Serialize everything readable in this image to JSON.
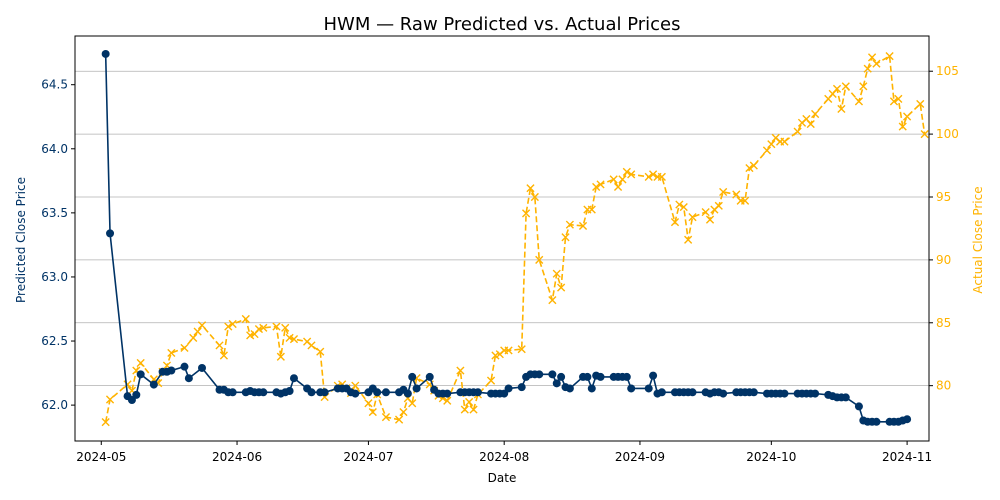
{
  "chart_data": {
    "type": "line",
    "title": "HWM — Raw Predicted vs. Actual Prices",
    "xlabel": "Date",
    "ylabel_left": "Predicted Close Price",
    "ylabel_right": "Actual Close Price",
    "x_ticks": [
      "2024-05",
      "2024-06",
      "2024-07",
      "2024-08",
      "2024-09",
      "2024-10",
      "2024-11"
    ],
    "x_range": [
      "2024-04-25",
      "2024-11-06"
    ],
    "y_left_ticks": [
      "62.0",
      "62.5",
      "63.0",
      "63.5",
      "64.0",
      "64.5"
    ],
    "y_left_range": [
      61.72,
      64.88
    ],
    "y_right_ticks": [
      "80",
      "85",
      "90",
      "95",
      "100",
      "105"
    ],
    "y_right_range": [
      75.6,
      107.8
    ],
    "grid": "horizontal",
    "colors": {
      "predicted": "#003366",
      "actual": "#FFB300"
    },
    "series": [
      {
        "axis": "left",
        "style": "solid-line-circle-markers",
        "points": [
          [
            "2024-05-02",
            64.74
          ],
          [
            "2024-05-03",
            63.34
          ],
          [
            "2024-05-07",
            62.07
          ],
          [
            "2024-05-08",
            62.04
          ],
          [
            "2024-05-09",
            62.08
          ],
          [
            "2024-05-10",
            62.24
          ],
          [
            "2024-05-13",
            62.16
          ],
          [
            "2024-05-15",
            62.26
          ],
          [
            "2024-05-16",
            62.26
          ],
          [
            "2024-05-17",
            62.27
          ],
          [
            "2024-05-20",
            62.3
          ],
          [
            "2024-05-21",
            62.21
          ],
          [
            "2024-05-24",
            62.29
          ],
          [
            "2024-05-28",
            62.12
          ],
          [
            "2024-05-29",
            62.12
          ],
          [
            "2024-05-30",
            62.1
          ],
          [
            "2024-05-31",
            62.1
          ],
          [
            "2024-06-03",
            62.1
          ],
          [
            "2024-06-04",
            62.11
          ],
          [
            "2024-06-05",
            62.1
          ],
          [
            "2024-06-06",
            62.1
          ],
          [
            "2024-06-07",
            62.1
          ],
          [
            "2024-06-10",
            62.1
          ],
          [
            "2024-06-11",
            62.09
          ],
          [
            "2024-06-12",
            62.1
          ],
          [
            "2024-06-13",
            62.11
          ],
          [
            "2024-06-14",
            62.21
          ],
          [
            "2024-06-17",
            62.13
          ],
          [
            "2024-06-18",
            62.1
          ],
          [
            "2024-06-20",
            62.1
          ],
          [
            "2024-06-21",
            62.1
          ],
          [
            "2024-06-24",
            62.13
          ],
          [
            "2024-06-25",
            62.13
          ],
          [
            "2024-06-26",
            62.13
          ],
          [
            "2024-06-27",
            62.1
          ],
          [
            "2024-06-28",
            62.09
          ],
          [
            "2024-07-01",
            62.1
          ],
          [
            "2024-07-02",
            62.13
          ],
          [
            "2024-07-03",
            62.1
          ],
          [
            "2024-07-05",
            62.1
          ],
          [
            "2024-07-08",
            62.1
          ],
          [
            "2024-07-09",
            62.12
          ],
          [
            "2024-07-10",
            62.09
          ],
          [
            "2024-07-11",
            62.22
          ],
          [
            "2024-07-12",
            62.13
          ],
          [
            "2024-07-15",
            62.22
          ],
          [
            "2024-07-16",
            62.12
          ],
          [
            "2024-07-17",
            62.09
          ],
          [
            "2024-07-18",
            62.09
          ],
          [
            "2024-07-19",
            62.09
          ],
          [
            "2024-07-22",
            62.1
          ],
          [
            "2024-07-23",
            62.1
          ],
          [
            "2024-07-24",
            62.1
          ],
          [
            "2024-07-25",
            62.1
          ],
          [
            "2024-07-26",
            62.1
          ],
          [
            "2024-07-29",
            62.09
          ],
          [
            "2024-07-30",
            62.09
          ],
          [
            "2024-07-31",
            62.09
          ],
          [
            "2024-08-01",
            62.09
          ],
          [
            "2024-08-02",
            62.13
          ],
          [
            "2024-08-05",
            62.14
          ],
          [
            "2024-08-06",
            62.22
          ],
          [
            "2024-08-07",
            62.24
          ],
          [
            "2024-08-08",
            62.24
          ],
          [
            "2024-08-09",
            62.24
          ],
          [
            "2024-08-12",
            62.24
          ],
          [
            "2024-08-13",
            62.17
          ],
          [
            "2024-08-14",
            62.22
          ],
          [
            "2024-08-15",
            62.14
          ],
          [
            "2024-08-16",
            62.13
          ],
          [
            "2024-08-19",
            62.22
          ],
          [
            "2024-08-20",
            62.22
          ],
          [
            "2024-08-21",
            62.13
          ],
          [
            "2024-08-22",
            62.23
          ],
          [
            "2024-08-23",
            62.22
          ],
          [
            "2024-08-26",
            62.22
          ],
          [
            "2024-08-27",
            62.22
          ],
          [
            "2024-08-28",
            62.22
          ],
          [
            "2024-08-29",
            62.22
          ],
          [
            "2024-08-30",
            62.13
          ],
          [
            "2024-09-03",
            62.13
          ],
          [
            "2024-09-04",
            62.23
          ],
          [
            "2024-09-05",
            62.09
          ],
          [
            "2024-09-06",
            62.1
          ],
          [
            "2024-09-09",
            62.1
          ],
          [
            "2024-09-10",
            62.1
          ],
          [
            "2024-09-11",
            62.1
          ],
          [
            "2024-09-12",
            62.1
          ],
          [
            "2024-09-13",
            62.1
          ],
          [
            "2024-09-16",
            62.1
          ],
          [
            "2024-09-17",
            62.09
          ],
          [
            "2024-09-18",
            62.1
          ],
          [
            "2024-09-19",
            62.1
          ],
          [
            "2024-09-20",
            62.09
          ],
          [
            "2024-09-23",
            62.1
          ],
          [
            "2024-09-24",
            62.1
          ],
          [
            "2024-09-25",
            62.1
          ],
          [
            "2024-09-26",
            62.1
          ],
          [
            "2024-09-27",
            62.1
          ],
          [
            "2024-09-30",
            62.09
          ],
          [
            "2024-10-01",
            62.09
          ],
          [
            "2024-10-02",
            62.09
          ],
          [
            "2024-10-03",
            62.09
          ],
          [
            "2024-10-04",
            62.09
          ],
          [
            "2024-10-07",
            62.09
          ],
          [
            "2024-10-08",
            62.09
          ],
          [
            "2024-10-09",
            62.09
          ],
          [
            "2024-10-10",
            62.09
          ],
          [
            "2024-10-11",
            62.09
          ],
          [
            "2024-10-14",
            62.08
          ],
          [
            "2024-10-15",
            62.07
          ],
          [
            "2024-10-16",
            62.06
          ],
          [
            "2024-10-17",
            62.06
          ],
          [
            "2024-10-18",
            62.06
          ],
          [
            "2024-10-21",
            61.99
          ],
          [
            "2024-10-22",
            61.88
          ],
          [
            "2024-10-23",
            61.87
          ],
          [
            "2024-10-24",
            61.87
          ],
          [
            "2024-10-25",
            61.87
          ],
          [
            "2024-10-28",
            61.87
          ],
          [
            "2024-10-29",
            61.87
          ],
          [
            "2024-10-30",
            61.87
          ],
          [
            "2024-10-31",
            61.88
          ],
          [
            "2024-11-01",
            61.89
          ]
        ]
      },
      {
        "axis": "right",
        "style": "dashed-line-x-markers",
        "points": [
          [
            "2024-05-02",
            77.1
          ],
          [
            "2024-05-03",
            78.9
          ],
          [
            "2024-05-07",
            80.1
          ],
          [
            "2024-05-08",
            79.6
          ],
          [
            "2024-05-09",
            81.2
          ],
          [
            "2024-05-10",
            81.8
          ],
          [
            "2024-05-13",
            80.5
          ],
          [
            "2024-05-14",
            80.2
          ],
          [
            "2024-05-15",
            81.1
          ],
          [
            "2024-05-16",
            81.6
          ],
          [
            "2024-05-17",
            82.6
          ],
          [
            "2024-05-20",
            83.0
          ],
          [
            "2024-05-22",
            83.8
          ],
          [
            "2024-05-23",
            84.3
          ],
          [
            "2024-05-24",
            84.8
          ],
          [
            "2024-05-28",
            83.2
          ],
          [
            "2024-05-29",
            82.4
          ],
          [
            "2024-05-30",
            84.7
          ],
          [
            "2024-05-31",
            84.9
          ],
          [
            "2024-06-03",
            85.3
          ],
          [
            "2024-06-04",
            84.0
          ],
          [
            "2024-06-05",
            84.1
          ],
          [
            "2024-06-06",
            84.5
          ],
          [
            "2024-06-07",
            84.6
          ],
          [
            "2024-06-10",
            84.7
          ],
          [
            "2024-06-11",
            82.3
          ],
          [
            "2024-06-12",
            84.6
          ],
          [
            "2024-06-13",
            83.8
          ],
          [
            "2024-06-14",
            83.7
          ],
          [
            "2024-06-17",
            83.5
          ],
          [
            "2024-06-18",
            83.2
          ],
          [
            "2024-06-20",
            82.7
          ],
          [
            "2024-06-21",
            79.1
          ],
          [
            "2024-06-24",
            80.0
          ],
          [
            "2024-06-25",
            80.1
          ],
          [
            "2024-06-26",
            79.8
          ],
          [
            "2024-06-27",
            79.4
          ],
          [
            "2024-06-28",
            80.0
          ],
          [
            "2024-07-01",
            78.6
          ],
          [
            "2024-07-02",
            77.9
          ],
          [
            "2024-07-03",
            79.3
          ],
          [
            "2024-07-05",
            77.5
          ],
          [
            "2024-07-08",
            77.3
          ],
          [
            "2024-07-09",
            77.9
          ],
          [
            "2024-07-10",
            79.0
          ],
          [
            "2024-07-11",
            78.6
          ],
          [
            "2024-07-12",
            80.6
          ],
          [
            "2024-07-15",
            80.1
          ],
          [
            "2024-07-16",
            79.6
          ],
          [
            "2024-07-17",
            79.2
          ],
          [
            "2024-07-18",
            79.0
          ],
          [
            "2024-07-19",
            78.8
          ],
          [
            "2024-07-22",
            81.2
          ],
          [
            "2024-07-23",
            78.1
          ],
          [
            "2024-07-24",
            78.7
          ],
          [
            "2024-07-25",
            78.1
          ],
          [
            "2024-07-26",
            79.3
          ],
          [
            "2024-07-29",
            80.4
          ],
          [
            "2024-07-30",
            82.4
          ],
          [
            "2024-07-31",
            82.5
          ],
          [
            "2024-08-01",
            82.8
          ],
          [
            "2024-08-02",
            82.8
          ],
          [
            "2024-08-05",
            82.9
          ],
          [
            "2024-08-06",
            93.7
          ],
          [
            "2024-08-07",
            95.7
          ],
          [
            "2024-08-08",
            95.0
          ],
          [
            "2024-08-09",
            90.0
          ],
          [
            "2024-08-12",
            86.8
          ],
          [
            "2024-08-13",
            88.9
          ],
          [
            "2024-08-14",
            87.8
          ],
          [
            "2024-08-15",
            91.8
          ],
          [
            "2024-08-16",
            92.8
          ],
          [
            "2024-08-19",
            92.7
          ],
          [
            "2024-08-20",
            94.0
          ],
          [
            "2024-08-21",
            94.0
          ],
          [
            "2024-08-22",
            95.8
          ],
          [
            "2024-08-23",
            96.0
          ],
          [
            "2024-08-26",
            96.4
          ],
          [
            "2024-08-27",
            95.8
          ],
          [
            "2024-08-28",
            96.4
          ],
          [
            "2024-08-29",
            97.0
          ],
          [
            "2024-08-30",
            96.8
          ],
          [
            "2024-09-03",
            96.6
          ],
          [
            "2024-09-04",
            96.8
          ],
          [
            "2024-09-05",
            96.6
          ],
          [
            "2024-09-06",
            96.6
          ],
          [
            "2024-09-09",
            93.0
          ],
          [
            "2024-09-10",
            94.4
          ],
          [
            "2024-09-11",
            94.2
          ],
          [
            "2024-09-12",
            91.6
          ],
          [
            "2024-09-13",
            93.4
          ],
          [
            "2024-09-16",
            93.8
          ],
          [
            "2024-09-17",
            93.2
          ],
          [
            "2024-09-18",
            94.0
          ],
          [
            "2024-09-19",
            94.3
          ],
          [
            "2024-09-20",
            95.4
          ],
          [
            "2024-09-23",
            95.2
          ],
          [
            "2024-09-24",
            94.7
          ],
          [
            "2024-09-25",
            94.7
          ],
          [
            "2024-09-26",
            97.3
          ],
          [
            "2024-09-27",
            97.5
          ],
          [
            "2024-09-30",
            98.7
          ],
          [
            "2024-10-01",
            99.2
          ],
          [
            "2024-10-02",
            99.7
          ],
          [
            "2024-10-03",
            99.4
          ],
          [
            "2024-10-04",
            99.4
          ],
          [
            "2024-10-07",
            100.2
          ],
          [
            "2024-10-08",
            100.9
          ],
          [
            "2024-10-09",
            101.2
          ],
          [
            "2024-10-10",
            100.8
          ],
          [
            "2024-10-11",
            101.6
          ],
          [
            "2024-10-14",
            102.8
          ],
          [
            "2024-10-15",
            103.2
          ],
          [
            "2024-10-16",
            103.6
          ],
          [
            "2024-10-17",
            102.0
          ],
          [
            "2024-10-18",
            103.8
          ],
          [
            "2024-10-21",
            102.6
          ],
          [
            "2024-10-22",
            103.8
          ],
          [
            "2024-10-23",
            105.2
          ],
          [
            "2024-10-24",
            106.1
          ],
          [
            "2024-10-25",
            105.6
          ],
          [
            "2024-10-28",
            106.2
          ],
          [
            "2024-10-29",
            102.6
          ],
          [
            "2024-10-30",
            102.8
          ],
          [
            "2024-10-31",
            100.6
          ],
          [
            "2024-11-01",
            101.4
          ],
          [
            "2024-11-04",
            102.4
          ],
          [
            "2024-11-05",
            100.0
          ]
        ]
      }
    ]
  }
}
